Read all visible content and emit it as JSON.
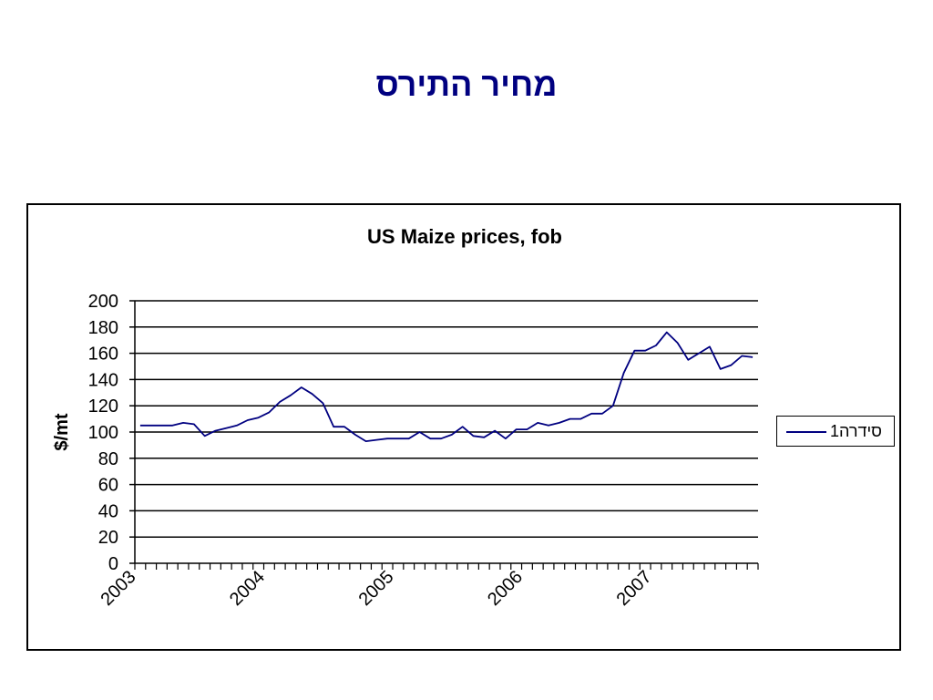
{
  "slide": {
    "title": "מחיר התירס"
  },
  "colors": {
    "series": "#000080",
    "grid": "#000000",
    "title": "#000080"
  },
  "chart_data": {
    "type": "line",
    "title": "US Maize prices, fob",
    "xlabel": "",
    "ylabel": "$/mt",
    "ylim": [
      0,
      200
    ],
    "yticks": [
      0,
      20,
      40,
      60,
      80,
      100,
      120,
      140,
      160,
      180,
      200
    ],
    "xtick_labels": [
      "2003",
      "2004",
      "2005",
      "2006",
      "2007"
    ],
    "xtick_label_index": [
      0,
      12,
      24,
      36,
      48
    ],
    "grid": "horizontal",
    "legend_position": "right",
    "series": [
      {
        "name": "סידרה1",
        "values": [
          105,
          105,
          105,
          105,
          107,
          106,
          97,
          101,
          103,
          105,
          109,
          111,
          115,
          123,
          128,
          134,
          129,
          122,
          104,
          104,
          98,
          93,
          94,
          95,
          95,
          95,
          100,
          95,
          95,
          98,
          104,
          97,
          96,
          101,
          95,
          102,
          102,
          107,
          105,
          107,
          110,
          110,
          114,
          114,
          120,
          145,
          162,
          162,
          166,
          176,
          168,
          155,
          160,
          165,
          148,
          151,
          158,
          157
        ]
      }
    ]
  }
}
